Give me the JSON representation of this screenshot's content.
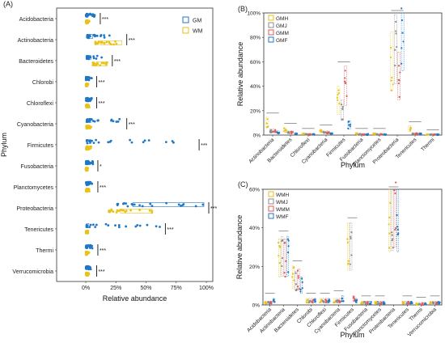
{
  "chart_data": [
    {
      "panel_label": "(A)",
      "type": "scatter",
      "orientation": "horizontal",
      "xlabel": "Relative abundance",
      "ylabel": "Phylum",
      "xlim": [
        0,
        100
      ],
      "x_ticks": [
        "0%",
        "25%",
        "50%",
        "75%",
        "100%"
      ],
      "categories": [
        "Acidobacteria",
        "Actinobacteria",
        "Bacteroidetes",
        "Chlorobi",
        "Chloroflexi",
        "Cyanobacteria",
        "Firmicutes",
        "Fusobacteria",
        "Planctomycetes",
        "Proteobacteria",
        "Tenericutes",
        "Thermi",
        "Verrucomicrobia"
      ],
      "legend": [
        "GM",
        "WM"
      ],
      "legend_position": "top-right",
      "colors": {
        "GM": "#1f77c4",
        "WM": "#e8c21a"
      },
      "significance": [
        "***",
        "***",
        "***",
        "***",
        "***",
        "***",
        "***",
        "*",
        "***",
        "***",
        "***",
        "***",
        "***"
      ],
      "series": [
        {
          "name": "GM",
          "median": [
            0.5,
            3,
            2,
            0.5,
            0.5,
            2,
            2,
            0.5,
            1,
            65,
            1,
            0.5,
            0.5
          ],
          "max": [
            8,
            20,
            15,
            5,
            5,
            30,
            90,
            6,
            6,
            98,
            62,
            6,
            5
          ]
        },
        {
          "name": "WM",
          "median": [
            0.5,
            20,
            15,
            0.3,
            0.5,
            1,
            1,
            0.2,
            0.5,
            48,
            0.5,
            0.5,
            0.5
          ],
          "max": [
            3,
            30,
            18,
            2,
            3,
            5,
            5,
            2,
            3,
            55,
            2,
            3,
            3
          ]
        }
      ]
    },
    {
      "panel_label": "(B)",
      "type": "scatter",
      "xlabel": "Phylum",
      "ylabel": "Relative abundance",
      "ylim": [
        0,
        100
      ],
      "y_ticks": [
        "0%",
        "20%",
        "40%",
        "60%",
        "80%",
        "100%"
      ],
      "categories": [
        "Actinobacteria",
        "Bacteroidetes",
        "Chloroflexi",
        "Cyanobacteria",
        "Firmicutes",
        "Fusobacteria",
        "Planctomycetes",
        "Proteobacteria",
        "Tenericutes",
        "Thermi"
      ],
      "legend": [
        "GMH",
        "GMJ",
        "GMM",
        "GMF"
      ],
      "legend_position": "top-left",
      "colors": {
        "GMH": "#e8c21a",
        "GMJ": "#8c8c8c",
        "GMM": "#e05a5a",
        "GMF": "#1f77c4"
      },
      "series": [
        {
          "name": "GMH",
          "values": [
            10,
            4,
            1,
            3,
            28,
            1,
            1,
            60,
            5,
            0.3
          ]
        },
        {
          "name": "GMJ",
          "values": [
            3,
            2,
            0.5,
            2,
            20,
            0.5,
            0.5,
            70,
            1,
            0.3
          ]
        },
        {
          "name": "GMM",
          "values": [
            3,
            2,
            0.5,
            2,
            40,
            0.5,
            0.5,
            48,
            1,
            0.3
          ]
        },
        {
          "name": "GMF",
          "values": [
            2,
            1,
            0.5,
            1,
            8,
            0.5,
            0.5,
            88,
            1,
            0.3
          ]
        }
      ]
    },
    {
      "panel_label": "(C)",
      "type": "scatter",
      "xlabel": "Phylum",
      "ylabel": "Relative abundance",
      "ylim": [
        0,
        60
      ],
      "y_ticks": [
        "0%",
        "20%",
        "40%",
        "60%"
      ],
      "categories": [
        "Acidobacteria",
        "Actinobacteria",
        "Bacteroidetes",
        "Chlorobi",
        "Chloroflexi",
        "Cyanobacteria",
        "Firmicutes",
        "Fusobacteria",
        "Planctomycetes",
        "Proteobacteria",
        "Tenericutes",
        "Thermi",
        "Verrucomicrobia"
      ],
      "legend": [
        "WMH",
        "WMJ",
        "WMM",
        "WMF"
      ],
      "legend_position": "top-left",
      "colors": {
        "WMH": "#e8c21a",
        "WMJ": "#8c8c8c",
        "WMM": "#e05a5a",
        "WMF": "#1f77c4"
      },
      "series": [
        {
          "name": "WMH",
          "values": [
            1,
            24,
            14,
            2,
            2,
            2,
            30,
            1,
            1,
            46,
            1,
            0.5,
            1
          ]
        },
        {
          "name": "WMJ",
          "values": [
            1,
            25,
            12,
            2,
            2,
            2,
            30,
            1,
            1,
            47,
            1,
            0.5,
            1
          ]
        },
        {
          "name": "WMM",
          "values": [
            1,
            24,
            13,
            2,
            2,
            2,
            3,
            1,
            1,
            50,
            1,
            0.5,
            1
          ]
        },
        {
          "name": "WMF",
          "values": [
            2,
            25,
            10,
            2,
            2,
            3,
            2,
            1,
            1,
            46,
            1,
            0.5,
            1
          ]
        }
      ]
    }
  ]
}
